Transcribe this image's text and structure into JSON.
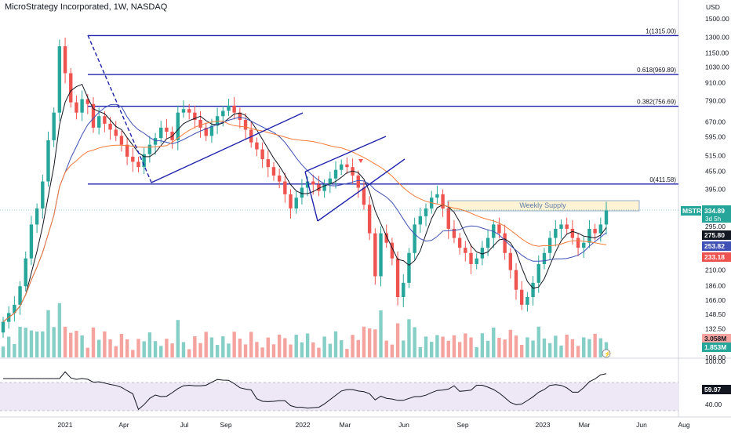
{
  "header": {
    "title": "MicroStrategy Incorporated, 1W, NASDAQ"
  },
  "colors": {
    "up": "#26a69a",
    "down": "#ef5350",
    "up_volume": "#86cfc6",
    "down_volume": "#f5a39f",
    "ma_fast": "#131722",
    "ma_mid": "#3f51b5",
    "ma_slow": "#f57c3a",
    "drawing": "#1e22aa",
    "supply_zone": "#fff3d6",
    "supply_text": "#5d7ea8",
    "rsi_band": "#ede7f6"
  },
  "price_axis": {
    "currency": "USD",
    "ticks": [
      "1500.00",
      "1300.00",
      "1150.00",
      "1030.00",
      "910.00",
      "790.00",
      "670.00",
      "595.00",
      "515.00",
      "455.00",
      "395.00",
      "335.00",
      "295.00",
      "250.00",
      "210.00",
      "186.00",
      "166.00",
      "148.50",
      "132.50",
      "118.00",
      "106.00"
    ]
  },
  "rsi_axis": {
    "ticks": [
      "100.00",
      "40.00"
    ]
  },
  "time_axis": {
    "ticks": [
      "2021",
      "Apr",
      "Jul",
      "Sep",
      "2022",
      "Mar",
      "Jun",
      "Sep",
      "2023",
      "Mar",
      "Jun",
      "Aug"
    ]
  },
  "tags": {
    "symbol": "MSTR",
    "price": "334.89",
    "countdown": "3d 5h",
    "ma_fast": "275.80",
    "ma_mid": "253.82",
    "ma_slow": "233.18",
    "volume_1": "3.058M",
    "volume_2": "1.853M",
    "rsi": "59.97"
  },
  "fib_levels": [
    {
      "label": "1(1315.00)",
      "value": 1315.0
    },
    {
      "label": "0.618(969.89)",
      "value": 969.89
    },
    {
      "label": "0.382(756.69)",
      "value": 756.69
    },
    {
      "label": "0(411.58)",
      "value": 411.58
    }
  ],
  "annotation": "Weekly Supply",
  "chart_data": {
    "type": "candlestick",
    "title": "MicroStrategy Incorporated, 1W, NASDAQ",
    "y_scale": "log",
    "ylim": [
      106,
      1500
    ],
    "weekly_close_approx": [
      140,
      150,
      160,
      185,
      230,
      300,
      340,
      420,
      580,
      720,
      1210,
      980,
      780,
      720,
      800,
      770,
      640,
      700,
      660,
      630,
      600,
      560,
      510,
      490,
      470,
      520,
      560,
      590,
      640,
      620,
      580,
      720,
      740,
      720,
      680,
      640,
      600,
      650,
      700,
      730,
      760,
      720,
      680,
      630,
      570,
      540,
      500,
      470,
      440,
      420,
      380,
      340,
      370,
      400,
      420,
      410,
      390,
      410,
      430,
      460,
      480,
      470,
      440,
      400,
      350,
      280,
      200,
      280,
      260,
      230,
      170,
      190,
      240,
      300,
      320,
      340,
      370,
      380,
      340,
      290,
      270,
      250,
      240,
      220,
      230,
      250,
      270,
      300,
      280,
      240,
      210,
      180,
      160,
      170,
      190,
      220,
      240,
      270,
      290,
      300,
      290,
      270,
      250,
      260,
      290,
      280,
      300,
      334.89
    ],
    "ma_fast_last": 275.8,
    "ma_mid_last": 253.82,
    "ma_slow_last": 233.18,
    "last_price": 334.89,
    "rsi_last": 59.97,
    "rsi_ylim": [
      0,
      100
    ],
    "grid": false
  }
}
